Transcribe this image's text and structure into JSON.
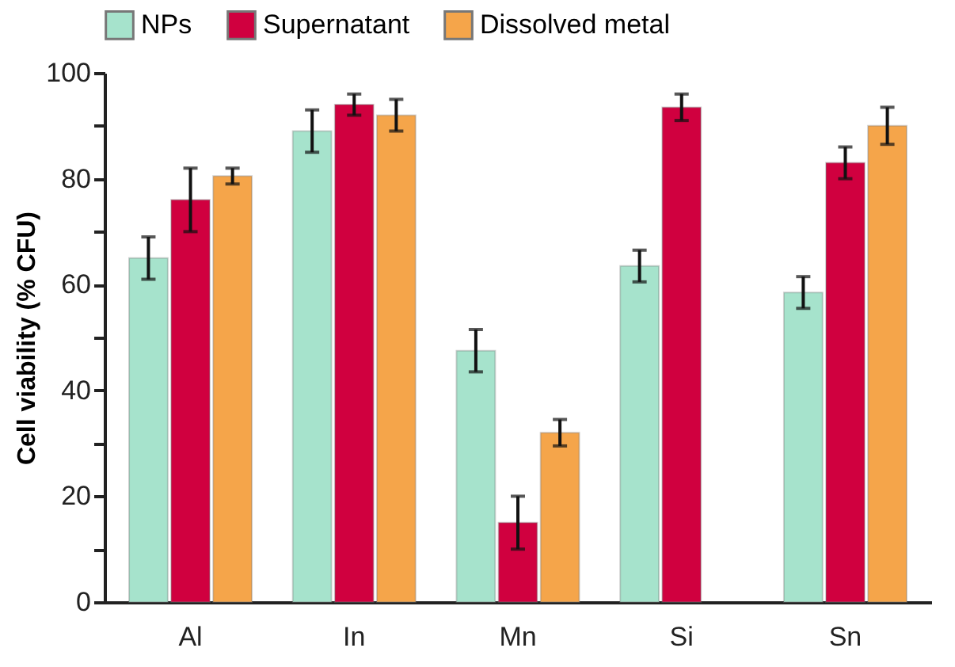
{
  "chart_data": {
    "type": "bar",
    "ylabel": "Cell viability (% CFU)",
    "categories": [
      "Al",
      "In",
      "Mn",
      "Si",
      "Sn"
    ],
    "series": [
      {
        "name": "NPs",
        "color": "#a6e3cc",
        "values": [
          65,
          89,
          47.5,
          63.5,
          58.5
        ],
        "errors": [
          4,
          4,
          4,
          3,
          3
        ]
      },
      {
        "name": "Supernatant",
        "color": "#d0003f",
        "values": [
          76,
          94,
          15,
          93.5,
          83
        ],
        "errors": [
          6,
          2,
          5,
          2.5,
          3
        ]
      },
      {
        "name": "Dissolved metal",
        "color": "#f5a54a",
        "values": [
          80.5,
          92,
          32,
          null,
          90
        ],
        "errors": [
          1.5,
          3,
          2.5,
          null,
          3.5
        ]
      }
    ],
    "ylim": [
      0,
      100
    ],
    "yticks": [
      0,
      {
        "value": 10,
        "label": null
      },
      20,
      {
        "value": 30,
        "label": null
      },
      40,
      {
        "value": 50,
        "label": null
      },
      60,
      {
        "value": 70,
        "label": null
      },
      80,
      {
        "value": 90,
        "label": null
      },
      100
    ],
    "legend": "top",
    "grid": false
  }
}
